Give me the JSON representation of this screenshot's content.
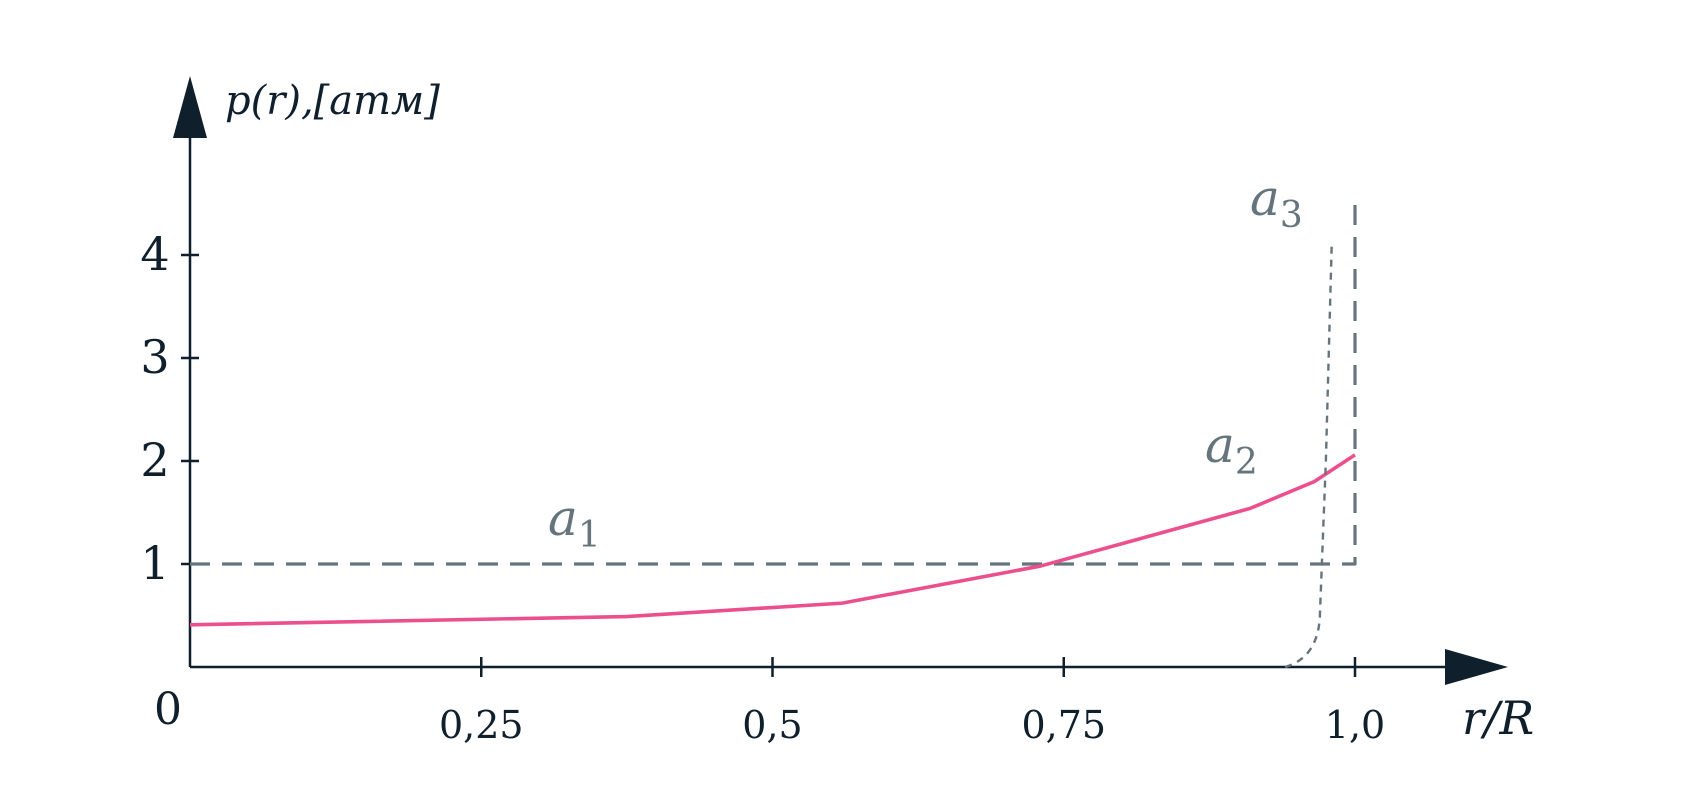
{
  "chart_data": {
    "type": "line",
    "y_axis_label": "p(r),[атм]",
    "x_axis_label": "r/R",
    "origin_label": "0",
    "x_ticks": [
      {
        "value": 0.25,
        "label": "0,25"
      },
      {
        "value": 0.5,
        "label": "0,5"
      },
      {
        "value": 0.75,
        "label": "0,75"
      },
      {
        "value": 1.0,
        "label": "1,0"
      }
    ],
    "y_ticks": [
      {
        "value": 1,
        "label": "1"
      },
      {
        "value": 2,
        "label": "2"
      },
      {
        "value": 3,
        "label": "3"
      },
      {
        "value": 4,
        "label": "4"
      }
    ],
    "xlim": [
      0,
      1.25
    ],
    "ylim": [
      0,
      4.6
    ],
    "grid": false,
    "colors": {
      "axis": "#0f1f2b",
      "a1": "#66757d",
      "a2": "#ec4f8e",
      "a3": "#66757d"
    },
    "series": [
      {
        "name": "a_1",
        "label_main": "a",
        "label_sub": "1",
        "style": "dashed",
        "points": [
          [
            0.0,
            1.0
          ],
          [
            1.0,
            1.0
          ],
          [
            1.0,
            4.6
          ]
        ]
      },
      {
        "name": "a_2",
        "label_main": "a",
        "label_sub": "2",
        "style": "solid",
        "points": [
          [
            0.0,
            0.41
          ],
          [
            0.375,
            0.49
          ],
          [
            0.56,
            0.62
          ],
          [
            0.73,
            0.98
          ],
          [
            0.91,
            1.54
          ],
          [
            0.965,
            1.8
          ],
          [
            1.0,
            2.06
          ]
        ]
      },
      {
        "name": "a_3",
        "label_main": "a",
        "label_sub": "3",
        "style": "dotted",
        "points": [
          [
            0.94,
            0.0
          ],
          [
            0.96,
            0.2
          ],
          [
            0.97,
            0.55
          ],
          [
            0.975,
            2.0
          ],
          [
            0.98,
            4.1
          ]
        ]
      }
    ]
  }
}
